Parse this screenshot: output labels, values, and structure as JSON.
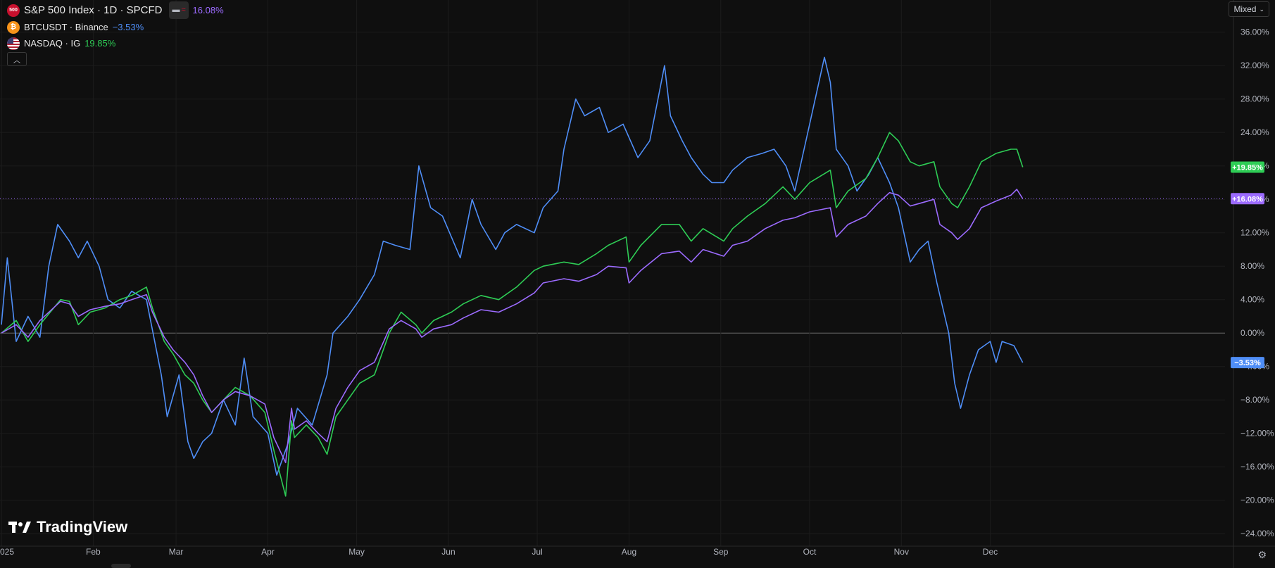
{
  "legend": {
    "main": {
      "symbol_text": "500",
      "title": "S&P 500 Index · 1D · SPCFD",
      "change": "16.08%",
      "color": "#9c6bff"
    },
    "items": [
      {
        "title": "BTCUSDT · Binance",
        "change": "−3.53%",
        "color": "#4f8ef7"
      },
      {
        "title": "NASDAQ · IG",
        "change": "19.85%",
        "color": "#2ecc55"
      }
    ]
  },
  "mode": "Mixed",
  "brand": "TradingView",
  "chart_data": {
    "type": "line",
    "x_ticks": [
      "025",
      "Feb",
      "Mar",
      "Apr",
      "May",
      "Jun",
      "Jul",
      "Aug",
      "Sep",
      "Oct",
      "Nov",
      "Dec"
    ],
    "y_ticks": [
      "36.00%",
      "32.00%",
      "28.00%",
      "24.00%",
      "20.00%",
      "16.00%",
      "12.00%",
      "8.00%",
      "4.00%",
      "0.00%",
      "−4.00%",
      "−8.00%",
      "−12.00%",
      "−16.00%",
      "−20.00%",
      "−24.00%"
    ],
    "ylim": [
      -25.5,
      38
    ],
    "baseline": 0,
    "series": [
      {
        "name": "S&P 500 Index",
        "color": "#9c6bff",
        "last_label": "+16.08%",
        "points": [
          [
            "2025-01-01",
            0
          ],
          [
            "2025-01-06",
            1
          ],
          [
            "2025-01-10",
            -0.5
          ],
          [
            "2025-01-14",
            1.5
          ],
          [
            "2025-01-21",
            3.8
          ],
          [
            "2025-01-24",
            3.5
          ],
          [
            "2025-01-27",
            2.0
          ],
          [
            "2025-01-31",
            2.8
          ],
          [
            "2025-02-05",
            3.2
          ],
          [
            "2025-02-10",
            3.5
          ],
          [
            "2025-02-14",
            4.0
          ],
          [
            "2025-02-19",
            4.6
          ],
          [
            "2025-02-21",
            2.5
          ],
          [
            "2025-02-25",
            -0.5
          ],
          [
            "2025-02-28",
            -2.0
          ],
          [
            "2025-03-04",
            -3.5
          ],
          [
            "2025-03-07",
            -5.0
          ],
          [
            "2025-03-10",
            -7.5
          ],
          [
            "2025-03-13",
            -9.5
          ],
          [
            "2025-03-17",
            -8.0
          ],
          [
            "2025-03-21",
            -7.0
          ],
          [
            "2025-03-26",
            -7.5
          ],
          [
            "2025-03-31",
            -8.5
          ],
          [
            "2025-04-03",
            -12.5
          ],
          [
            "2025-04-07",
            -15.5
          ],
          [
            "2025-04-09",
            -9.0
          ],
          [
            "2025-04-10",
            -11.5
          ],
          [
            "2025-04-14",
            -10.5
          ],
          [
            "2025-04-18",
            -12.0
          ],
          [
            "2025-04-21",
            -13.0
          ],
          [
            "2025-04-24",
            -9.0
          ],
          [
            "2025-04-28",
            -6.5
          ],
          [
            "2025-05-02",
            -4.5
          ],
          [
            "2025-05-07",
            -3.5
          ],
          [
            "2025-05-12",
            0.5
          ],
          [
            "2025-05-16",
            1.5
          ],
          [
            "2025-05-21",
            0.5
          ],
          [
            "2025-05-23",
            -0.5
          ],
          [
            "2025-05-27",
            0.5
          ],
          [
            "2025-06-02",
            1.0
          ],
          [
            "2025-06-06",
            1.8
          ],
          [
            "2025-06-12",
            2.8
          ],
          [
            "2025-06-18",
            2.5
          ],
          [
            "2025-06-24",
            3.5
          ],
          [
            "2025-06-30",
            4.8
          ],
          [
            "2025-07-03",
            6.0
          ],
          [
            "2025-07-10",
            6.5
          ],
          [
            "2025-07-15",
            6.2
          ],
          [
            "2025-07-21",
            7.0
          ],
          [
            "2025-07-25",
            8.0
          ],
          [
            "2025-07-31",
            7.8
          ],
          [
            "2025-08-01",
            6.0
          ],
          [
            "2025-08-05",
            7.5
          ],
          [
            "2025-08-12",
            9.5
          ],
          [
            "2025-08-18",
            9.8
          ],
          [
            "2025-08-22",
            8.5
          ],
          [
            "2025-08-26",
            10.0
          ],
          [
            "2025-09-02",
            9.2
          ],
          [
            "2025-09-05",
            10.5
          ],
          [
            "2025-09-10",
            11.0
          ],
          [
            "2025-09-16",
            12.5
          ],
          [
            "2025-09-22",
            13.5
          ],
          [
            "2025-09-26",
            13.8
          ],
          [
            "2025-10-01",
            14.5
          ],
          [
            "2025-10-08",
            15.0
          ],
          [
            "2025-10-10",
            11.5
          ],
          [
            "2025-10-14",
            13.0
          ],
          [
            "2025-10-20",
            14.0
          ],
          [
            "2025-10-24",
            15.5
          ],
          [
            "2025-10-28",
            16.8
          ],
          [
            "2025-10-31",
            16.5
          ],
          [
            "2025-11-04",
            15.2
          ],
          [
            "2025-11-07",
            15.5
          ],
          [
            "2025-11-12",
            16.0
          ],
          [
            "2025-11-14",
            13.0
          ],
          [
            "2025-11-18",
            12.0
          ],
          [
            "2025-11-20",
            11.2
          ],
          [
            "2025-11-24",
            12.5
          ],
          [
            "2025-11-28",
            15.0
          ],
          [
            "2025-12-03",
            15.8
          ],
          [
            "2025-12-08",
            16.5
          ],
          [
            "2025-12-10",
            17.2
          ],
          [
            "2025-12-12",
            16.08
          ]
        ]
      },
      {
        "name": "BTCUSDT",
        "color": "#4f8ef7",
        "last_label": "−3.53%",
        "points": [
          [
            "2025-01-01",
            1
          ],
          [
            "2025-01-03",
            9
          ],
          [
            "2025-01-06",
            -1
          ],
          [
            "2025-01-10",
            2
          ],
          [
            "2025-01-14",
            -0.5
          ],
          [
            "2025-01-17",
            8
          ],
          [
            "2025-01-20",
            13
          ],
          [
            "2025-01-24",
            11
          ],
          [
            "2025-01-27",
            9
          ],
          [
            "2025-01-30",
            11
          ],
          [
            "2025-02-03",
            8
          ],
          [
            "2025-02-06",
            4
          ],
          [
            "2025-02-10",
            3
          ],
          [
            "2025-02-14",
            5
          ],
          [
            "2025-02-19",
            4
          ],
          [
            "2025-02-24",
            -5
          ],
          [
            "2025-02-26",
            -10
          ],
          [
            "2025-03-02",
            -5
          ],
          [
            "2025-03-05",
            -13
          ],
          [
            "2025-03-07",
            -15
          ],
          [
            "2025-03-10",
            -13
          ],
          [
            "2025-03-13",
            -12
          ],
          [
            "2025-03-17",
            -8
          ],
          [
            "2025-03-21",
            -11
          ],
          [
            "2025-03-24",
            -3
          ],
          [
            "2025-03-27",
            -10
          ],
          [
            "2025-04-01",
            -12
          ],
          [
            "2025-04-04",
            -17
          ],
          [
            "2025-04-08",
            -13
          ],
          [
            "2025-04-11",
            -9
          ],
          [
            "2025-04-16",
            -11
          ],
          [
            "2025-04-21",
            -5
          ],
          [
            "2025-04-23",
            0
          ],
          [
            "2025-04-28",
            2
          ],
          [
            "2025-05-02",
            4
          ],
          [
            "2025-05-07",
            7
          ],
          [
            "2025-05-10",
            11
          ],
          [
            "2025-05-14",
            10.5
          ],
          [
            "2025-05-19",
            10
          ],
          [
            "2025-05-22",
            20
          ],
          [
            "2025-05-26",
            15
          ],
          [
            "2025-05-30",
            14
          ],
          [
            "2025-06-05",
            9
          ],
          [
            "2025-06-09",
            16
          ],
          [
            "2025-06-12",
            13
          ],
          [
            "2025-06-17",
            10
          ],
          [
            "2025-06-20",
            12
          ],
          [
            "2025-06-24",
            13
          ],
          [
            "2025-06-30",
            12
          ],
          [
            "2025-07-03",
            15
          ],
          [
            "2025-07-08",
            17
          ],
          [
            "2025-07-10",
            22
          ],
          [
            "2025-07-14",
            28
          ],
          [
            "2025-07-17",
            26
          ],
          [
            "2025-07-22",
            27
          ],
          [
            "2025-07-25",
            24
          ],
          [
            "2025-07-30",
            25
          ],
          [
            "2025-08-04",
            21
          ],
          [
            "2025-08-08",
            23
          ],
          [
            "2025-08-13",
            32
          ],
          [
            "2025-08-15",
            26
          ],
          [
            "2025-08-19",
            23
          ],
          [
            "2025-08-22",
            21
          ],
          [
            "2025-08-26",
            19
          ],
          [
            "2025-08-29",
            18
          ],
          [
            "2025-09-02",
            18
          ],
          [
            "2025-09-05",
            19.5
          ],
          [
            "2025-09-10",
            21
          ],
          [
            "2025-09-15",
            21.5
          ],
          [
            "2025-09-19",
            22
          ],
          [
            "2025-09-23",
            20
          ],
          [
            "2025-09-26",
            17
          ],
          [
            "2025-10-01",
            25
          ],
          [
            "2025-10-06",
            33
          ],
          [
            "2025-10-08",
            30
          ],
          [
            "2025-10-10",
            22
          ],
          [
            "2025-10-14",
            20
          ],
          [
            "2025-10-17",
            17
          ],
          [
            "2025-10-21",
            19
          ],
          [
            "2025-10-24",
            21
          ],
          [
            "2025-10-28",
            18
          ],
          [
            "2025-10-31",
            15
          ],
          [
            "2025-11-04",
            8.5
          ],
          [
            "2025-11-07",
            10
          ],
          [
            "2025-11-10",
            11
          ],
          [
            "2025-11-13",
            6
          ],
          [
            "2025-11-17",
            0
          ],
          [
            "2025-11-19",
            -6
          ],
          [
            "2025-11-21",
            -9
          ],
          [
            "2025-11-24",
            -5
          ],
          [
            "2025-11-27",
            -2
          ],
          [
            "2025-12-01",
            -1
          ],
          [
            "2025-12-03",
            -3.5
          ],
          [
            "2025-12-05",
            -1
          ],
          [
            "2025-12-09",
            -1.5
          ],
          [
            "2025-12-12",
            -3.53
          ]
        ]
      },
      {
        "name": "NASDAQ",
        "color": "#2ecc55",
        "last_label": "+19.85%",
        "points": [
          [
            "2025-01-01",
            0
          ],
          [
            "2025-01-06",
            1.5
          ],
          [
            "2025-01-10",
            -1
          ],
          [
            "2025-01-14",
            1
          ],
          [
            "2025-01-21",
            4
          ],
          [
            "2025-01-24",
            3.8
          ],
          [
            "2025-01-27",
            1
          ],
          [
            "2025-01-31",
            2.5
          ],
          [
            "2025-02-05",
            3
          ],
          [
            "2025-02-10",
            4
          ],
          [
            "2025-02-14",
            4.5
          ],
          [
            "2025-02-19",
            5.5
          ],
          [
            "2025-02-21",
            3
          ],
          [
            "2025-02-25",
            -1
          ],
          [
            "2025-02-28",
            -2.5
          ],
          [
            "2025-03-04",
            -5
          ],
          [
            "2025-03-07",
            -6
          ],
          [
            "2025-03-10",
            -8
          ],
          [
            "2025-03-13",
            -9.5
          ],
          [
            "2025-03-17",
            -8
          ],
          [
            "2025-03-21",
            -6.5
          ],
          [
            "2025-03-26",
            -7.5
          ],
          [
            "2025-03-31",
            -9.5
          ],
          [
            "2025-04-03",
            -14
          ],
          [
            "2025-04-07",
            -19.5
          ],
          [
            "2025-04-09",
            -10.5
          ],
          [
            "2025-04-10",
            -12.5
          ],
          [
            "2025-04-14",
            -11
          ],
          [
            "2025-04-18",
            -12.5
          ],
          [
            "2025-04-21",
            -14.5
          ],
          [
            "2025-04-24",
            -10
          ],
          [
            "2025-04-28",
            -8
          ],
          [
            "2025-05-02",
            -6
          ],
          [
            "2025-05-07",
            -5
          ],
          [
            "2025-05-12",
            0
          ],
          [
            "2025-05-16",
            2.5
          ],
          [
            "2025-05-21",
            1
          ],
          [
            "2025-05-23",
            0
          ],
          [
            "2025-05-27",
            1.5
          ],
          [
            "2025-06-02",
            2.5
          ],
          [
            "2025-06-06",
            3.5
          ],
          [
            "2025-06-12",
            4.5
          ],
          [
            "2025-06-18",
            4
          ],
          [
            "2025-06-24",
            5.5
          ],
          [
            "2025-06-30",
            7.5
          ],
          [
            "2025-07-03",
            8
          ],
          [
            "2025-07-10",
            8.5
          ],
          [
            "2025-07-15",
            8.2
          ],
          [
            "2025-07-21",
            9.5
          ],
          [
            "2025-07-25",
            10.5
          ],
          [
            "2025-07-31",
            11.5
          ],
          [
            "2025-08-01",
            8.5
          ],
          [
            "2025-08-05",
            10.5
          ],
          [
            "2025-08-12",
            13
          ],
          [
            "2025-08-18",
            13
          ],
          [
            "2025-08-22",
            11
          ],
          [
            "2025-08-26",
            12.5
          ],
          [
            "2025-09-02",
            11
          ],
          [
            "2025-09-05",
            12.5
          ],
          [
            "2025-09-10",
            14
          ],
          [
            "2025-09-16",
            15.5
          ],
          [
            "2025-09-22",
            17.5
          ],
          [
            "2025-09-26",
            16
          ],
          [
            "2025-10-01",
            18
          ],
          [
            "2025-10-08",
            19.5
          ],
          [
            "2025-10-10",
            15
          ],
          [
            "2025-10-14",
            17
          ],
          [
            "2025-10-20",
            18.5
          ],
          [
            "2025-10-24",
            21
          ],
          [
            "2025-10-28",
            24
          ],
          [
            "2025-10-31",
            23
          ],
          [
            "2025-11-04",
            20.5
          ],
          [
            "2025-11-07",
            20
          ],
          [
            "2025-11-12",
            20.5
          ],
          [
            "2025-11-14",
            17.5
          ],
          [
            "2025-11-18",
            15.5
          ],
          [
            "2025-11-20",
            15
          ],
          [
            "2025-11-24",
            17.5
          ],
          [
            "2025-11-28",
            20.5
          ],
          [
            "2025-12-03",
            21.5
          ],
          [
            "2025-12-08",
            22
          ],
          [
            "2025-12-10",
            22
          ],
          [
            "2025-12-12",
            19.85
          ]
        ]
      }
    ]
  }
}
